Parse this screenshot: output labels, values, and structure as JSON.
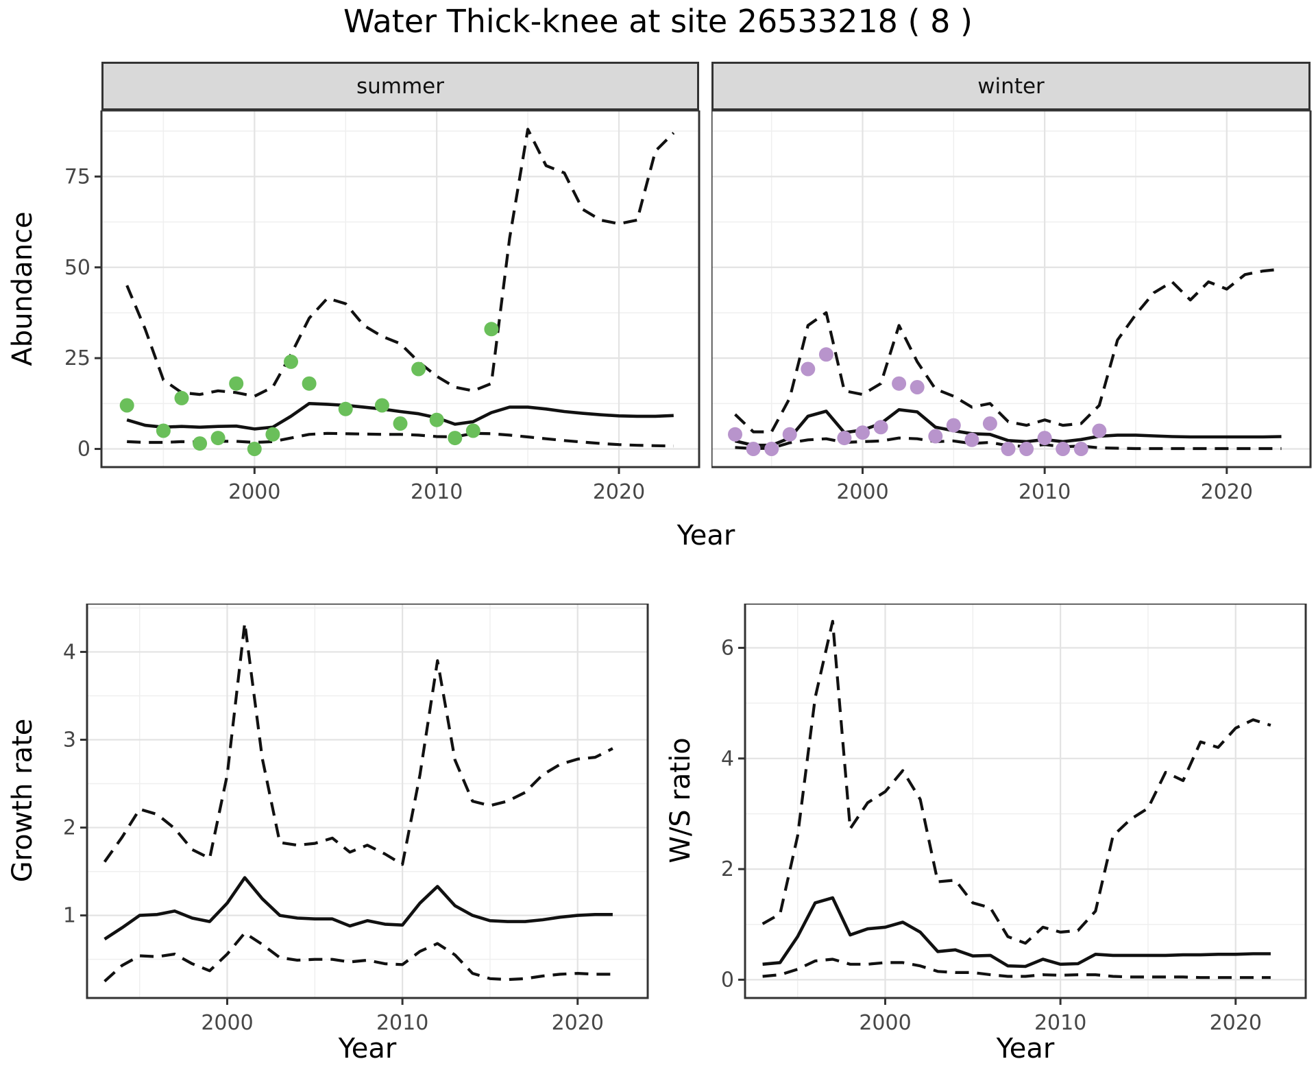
{
  "title": "Water Thick-knee at site 26533218 ( 8 )",
  "facets": {
    "summer_label": "summer",
    "winter_label": "winter"
  },
  "axis_labels": {
    "abundance": "Abundance",
    "year_top": "Year",
    "growth": "Growth rate",
    "year_growth": "Year",
    "ws": "W/S ratio",
    "year_ws": "Year"
  },
  "colors": {
    "summer_point": "#6abf5a",
    "winter_point": "#b894cc",
    "line": "#111111",
    "panel_border": "#333333",
    "strip_fill": "#d9d9d9",
    "grid_major": "#e3e3e3",
    "grid_minor": "#efefef",
    "tick_text": "#464646"
  },
  "chart_data": [
    {
      "id": "summer_abundance",
      "type": "line",
      "facet": "summer",
      "xlabel": "Year",
      "ylabel": "Abundance",
      "xlim": [
        1991.6,
        2024.4
      ],
      "ylim": [
        -5,
        93.2
      ],
      "x_ticks": [
        2000,
        2010,
        2020
      ],
      "x_minor": [
        1995,
        2005,
        2015
      ],
      "y_ticks": [
        0,
        25,
        50,
        75
      ],
      "y_minor": [
        12.5,
        37.5,
        62.5,
        87.5
      ],
      "x": [
        1993,
        1994,
        1995,
        1996,
        1997,
        1998,
        1999,
        2000,
        2001,
        2002,
        2003,
        2004,
        2005,
        2006,
        2007,
        2008,
        2009,
        2010,
        2011,
        2012,
        2013,
        2014,
        2015,
        2016,
        2017,
        2018,
        2019,
        2020,
        2021,
        2022,
        2023
      ],
      "series": [
        {
          "name": "upper_ci",
          "style": "dashed",
          "values": [
            45,
            33,
            19,
            15.5,
            15,
            16,
            15.5,
            14.5,
            17,
            26,
            36,
            41.5,
            40,
            34,
            31,
            29,
            24,
            20,
            17,
            16,
            18,
            58,
            88,
            78,
            76,
            66,
            63,
            62,
            63,
            82,
            87
          ]
        },
        {
          "name": "lower_ci",
          "style": "dashed",
          "values": [
            2,
            1.8,
            1.8,
            2,
            1.9,
            2.1,
            2.1,
            1.8,
            2,
            3,
            4,
            4.3,
            4.2,
            4.1,
            4,
            4,
            3.8,
            3.4,
            3.3,
            4.3,
            4.2,
            3.8,
            3.3,
            2.8,
            2.3,
            1.9,
            1.5,
            1.2,
            1,
            0.9,
            0.8
          ]
        },
        {
          "name": "fitted",
          "style": "solid",
          "values": [
            8,
            6.5,
            6,
            6.2,
            6,
            6.2,
            6.3,
            5.5,
            6,
            9,
            12.5,
            12.3,
            12,
            11.5,
            11,
            10.3,
            9.7,
            8.6,
            6.8,
            7.5,
            10,
            11.5,
            11.5,
            11,
            10.3,
            9.8,
            9.4,
            9.1,
            9,
            9,
            9.2
          ]
        }
      ],
      "points": {
        "color_key": "summer_point",
        "x": [
          1993,
          1995,
          1996,
          1997,
          1998,
          1999,
          2000,
          2001,
          2002,
          2003,
          2005,
          2007,
          2008,
          2009,
          2010,
          2011,
          2012,
          2013
        ],
        "y": [
          12,
          5,
          14,
          1.5,
          3,
          18,
          0,
          4,
          24,
          18,
          11,
          12,
          7,
          22,
          8,
          3,
          5,
          33
        ]
      }
    },
    {
      "id": "winter_abundance",
      "type": "line",
      "facet": "winter",
      "xlabel": "Year",
      "ylabel": "Abundance",
      "xlim": [
        1991.7,
        2024.6
      ],
      "ylim": [
        -5,
        93.2
      ],
      "x_ticks": [
        2000,
        2010,
        2020
      ],
      "x_minor": [
        1995,
        2005,
        2015
      ],
      "y_ticks": [
        0,
        25,
        50,
        75
      ],
      "y_minor": [
        12.5,
        37.5,
        62.5,
        87.5
      ],
      "x": [
        1993,
        1994,
        1995,
        1996,
        1997,
        1998,
        1999,
        2000,
        2001,
        2002,
        2003,
        2004,
        2005,
        2006,
        2007,
        2008,
        2009,
        2010,
        2011,
        2012,
        2013,
        2014,
        2015,
        2016,
        2017,
        2018,
        2019,
        2020,
        2021,
        2022,
        2023
      ],
      "series": [
        {
          "name": "upper_ci",
          "style": "dashed",
          "values": [
            9.5,
            4.7,
            4.7,
            14,
            34,
            37.5,
            16,
            15,
            18,
            34,
            24,
            16.5,
            14.5,
            11.5,
            12.5,
            7.5,
            6.5,
            8,
            6.5,
            7,
            12,
            30,
            37,
            43,
            46,
            41,
            46,
            44,
            48,
            49,
            49.5
          ]
        },
        {
          "name": "lower_ci",
          "style": "dashed",
          "values": [
            0.4,
            0.1,
            0.2,
            1.7,
            2.5,
            2.8,
            1.8,
            2,
            2.2,
            3,
            2.8,
            2,
            2.2,
            1.5,
            1.8,
            0.9,
            0.7,
            1.2,
            0.6,
            0.8,
            0.3,
            0.2,
            0.1,
            0.1,
            0.1,
            0.1,
            0.1,
            0.1,
            0.1,
            0.1,
            0.1
          ]
        },
        {
          "name": "fitted",
          "style": "solid",
          "values": [
            2.2,
            1,
            1,
            3,
            9,
            10.4,
            4.5,
            5.2,
            7,
            10.8,
            10.2,
            6,
            5,
            4.2,
            4,
            2.3,
            2,
            2.6,
            2,
            2.6,
            3.5,
            3.8,
            3.8,
            3.6,
            3.4,
            3.3,
            3.3,
            3.3,
            3.3,
            3.3,
            3.4
          ]
        }
      ],
      "points": {
        "color_key": "winter_point",
        "x": [
          1993,
          1994,
          1995,
          1996,
          1997,
          1998,
          1999,
          2000,
          2001,
          2002,
          2003,
          2004,
          2005,
          2006,
          2007,
          2008,
          2009,
          2010,
          2011,
          2012,
          2013
        ],
        "y": [
          4,
          0,
          0,
          4,
          22,
          26,
          3,
          4.5,
          6,
          18,
          17,
          3.5,
          6.5,
          2.5,
          7,
          0,
          0,
          3,
          0,
          0,
          5
        ]
      }
    },
    {
      "id": "growth_rate",
      "type": "line",
      "xlabel": "Year",
      "ylabel": "Growth rate",
      "xlim": [
        1992,
        2024
      ],
      "ylim": [
        0.06,
        4.55
      ],
      "x_ticks": [
        2000,
        2010,
        2020
      ],
      "x_minor": [
        1995,
        2005,
        2015
      ],
      "y_ticks": [
        1,
        2,
        3,
        4
      ],
      "y_minor": [
        0.5,
        1.5,
        2.5,
        3.5,
        4.5
      ],
      "x": [
        1993,
        1994,
        1995,
        1996,
        1997,
        1998,
        1999,
        2000,
        2001,
        2002,
        2003,
        2004,
        2005,
        2006,
        2007,
        2008,
        2009,
        2010,
        2011,
        2012,
        2013,
        2014,
        2015,
        2016,
        2017,
        2018,
        2019,
        2020,
        2021,
        2022
      ],
      "series": [
        {
          "name": "upper_ci",
          "style": "dashed",
          "values": [
            1.61,
            1.89,
            2.21,
            2.15,
            1.99,
            1.75,
            1.65,
            2.6,
            4.33,
            2.79,
            1.83,
            1.8,
            1.82,
            1.88,
            1.72,
            1.8,
            1.7,
            1.58,
            2.6,
            3.9,
            2.77,
            2.3,
            2.25,
            2.3,
            2.4,
            2.6,
            2.72,
            2.78,
            2.8,
            2.9
          ]
        },
        {
          "name": "lower_ci",
          "style": "dashed",
          "values": [
            0.25,
            0.43,
            0.54,
            0.53,
            0.56,
            0.45,
            0.37,
            0.56,
            0.8,
            0.67,
            0.52,
            0.49,
            0.5,
            0.5,
            0.47,
            0.49,
            0.45,
            0.44,
            0.59,
            0.68,
            0.55,
            0.34,
            0.28,
            0.27,
            0.28,
            0.31,
            0.33,
            0.34,
            0.33,
            0.33
          ]
        },
        {
          "name": "fitted",
          "style": "solid",
          "values": [
            0.73,
            0.86,
            1,
            1.01,
            1.05,
            0.97,
            0.93,
            1.14,
            1.43,
            1.19,
            1,
            0.97,
            0.96,
            0.96,
            0.88,
            0.94,
            0.9,
            0.89,
            1.14,
            1.33,
            1.11,
            1,
            0.94,
            0.93,
            0.93,
            0.95,
            0.98,
            1,
            1.01,
            1.01
          ]
        }
      ]
    },
    {
      "id": "ws_ratio",
      "type": "line",
      "xlabel": "Year",
      "ylabel": "W/S ratio",
      "xlim": [
        1992,
        2024
      ],
      "ylim": [
        -0.33,
        6.8
      ],
      "x_ticks": [
        2000,
        2010,
        2020
      ],
      "x_minor": [
        1995,
        2005,
        2015
      ],
      "y_ticks": [
        0,
        2,
        4,
        6
      ],
      "y_minor": [
        1,
        3,
        5
      ],
      "x": [
        1993,
        1994,
        1995,
        1996,
        1997,
        1998,
        1999,
        2000,
        2001,
        2002,
        2003,
        2004,
        2005,
        2006,
        2007,
        2008,
        2009,
        2010,
        2011,
        2012,
        2013,
        2014,
        2015,
        2016,
        2017,
        2018,
        2019,
        2020,
        2021,
        2022
      ],
      "series": [
        {
          "name": "upper_ci",
          "style": "dashed",
          "values": [
            1.01,
            1.19,
            2.6,
            5.1,
            6.48,
            2.73,
            3.2,
            3.4,
            3.78,
            3.26,
            1.77,
            1.8,
            1.39,
            1.3,
            0.78,
            0.66,
            0.95,
            0.86,
            0.89,
            1.24,
            2.6,
            2.9,
            3.1,
            3.75,
            3.6,
            4.3,
            4.2,
            4.55,
            4.7,
            4.6
          ]
        },
        {
          "name": "lower_ci",
          "style": "dashed",
          "values": [
            0.06,
            0.09,
            0.19,
            0.34,
            0.37,
            0.28,
            0.28,
            0.31,
            0.31,
            0.25,
            0.15,
            0.13,
            0.13,
            0.09,
            0.06,
            0.06,
            0.09,
            0.08,
            0.09,
            0.09,
            0.06,
            0.05,
            0.05,
            0.05,
            0.05,
            0.04,
            0.04,
            0.04,
            0.04,
            0.04
          ]
        },
        {
          "name": "fitted",
          "style": "solid",
          "values": [
            0.28,
            0.31,
            0.78,
            1.39,
            1.48,
            0.81,
            0.92,
            0.95,
            1.04,
            0.86,
            0.51,
            0.54,
            0.43,
            0.44,
            0.25,
            0.24,
            0.37,
            0.28,
            0.29,
            0.46,
            0.44,
            0.44,
            0.44,
            0.44,
            0.45,
            0.45,
            0.46,
            0.46,
            0.47,
            0.47
          ]
        }
      ]
    }
  ]
}
